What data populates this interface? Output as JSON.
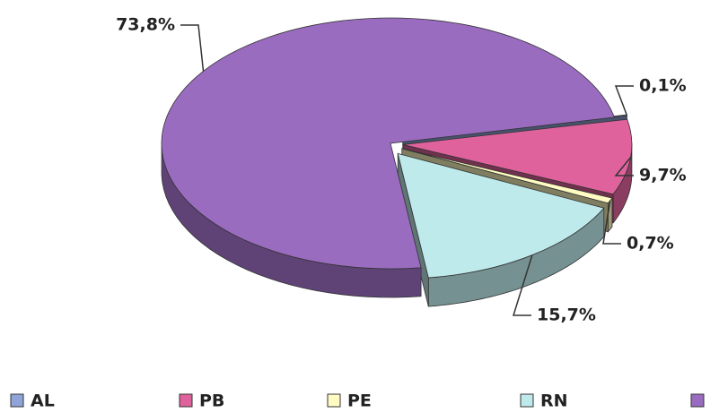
{
  "chart_data": {
    "type": "pie3d",
    "categories": [
      "AL",
      "PB",
      "PE",
      "RN",
      null
    ],
    "values": [
      0.1,
      9.7,
      0.7,
      15.7,
      73.8
    ],
    "value_labels": [
      "0,1%",
      "9,7%",
      "0,7%",
      "15,7%",
      "73,8%"
    ],
    "colors": [
      "#8fa4d8",
      "#e0629c",
      "#fffbc2",
      "#bfeaec",
      "#9a6cc0"
    ],
    "legend": "bottom"
  }
}
